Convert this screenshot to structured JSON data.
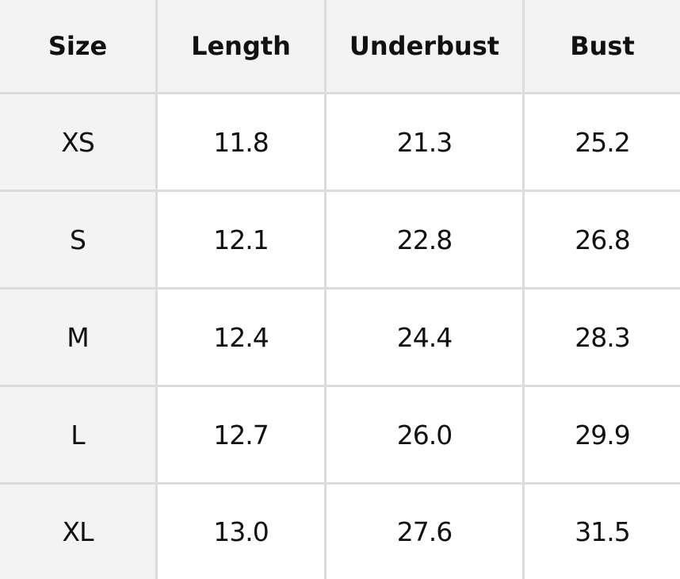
{
  "table": {
    "header": [
      "Size",
      "Length",
      "Underbust",
      "Bust"
    ],
    "rows": [
      [
        "XS",
        "11.8",
        "21.3",
        "25.2"
      ],
      [
        "S",
        "12.1",
        "22.8",
        "26.8"
      ],
      [
        "M",
        "12.4",
        "24.4",
        "28.3"
      ],
      [
        "L",
        "12.7",
        "26.0",
        "29.9"
      ],
      [
        "XL",
        "13.0",
        "27.6",
        "31.5"
      ]
    ]
  }
}
